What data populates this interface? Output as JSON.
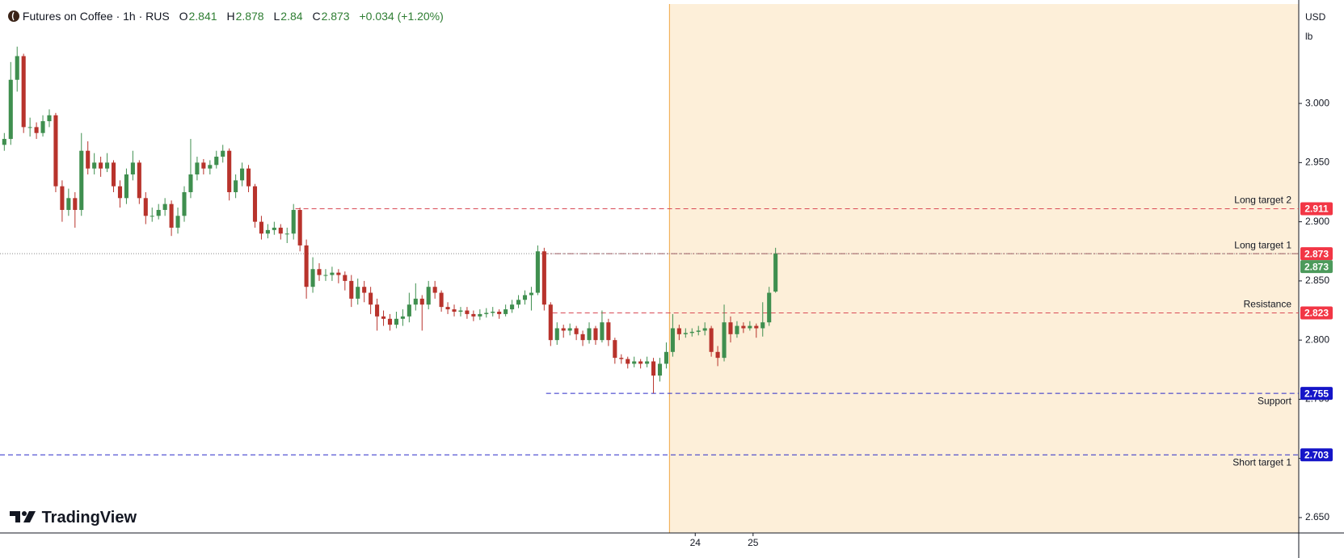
{
  "chart_data": {
    "type": "candlestick",
    "title": "Futures on Coffee · 1h · RUS",
    "ohlc_labels": [
      "O",
      "H",
      "L",
      "C"
    ],
    "change": "+0.034 (+1.20%)",
    "currency": "USD",
    "unit": "lb",
    "brand": "TradingView",
    "up_color": "#3f8f4f",
    "down_color": "#b8332c",
    "ylim": [
      2.637,
      3.084
    ],
    "yticks": [
      {
        "value": 2.65,
        "label": "2.650"
      },
      {
        "value": 2.7,
        "label": "2.700"
      },
      {
        "value": 2.75,
        "label": "2.750"
      },
      {
        "value": 2.8,
        "label": "2.800"
      },
      {
        "value": 2.85,
        "label": "2.850"
      },
      {
        "value": 2.9,
        "label": "2.900"
      },
      {
        "value": 2.95,
        "label": "2.950"
      },
      {
        "value": 3.0,
        "label": "3.000"
      }
    ],
    "xlim": [
      -0.67,
      201.4
    ],
    "xticks": [
      {
        "value": 107.5,
        "label": "24"
      },
      {
        "value": 116.5,
        "label": "25"
      }
    ],
    "session_highlight": {
      "from": 103.5,
      "color": "#fdefd9",
      "border": "#f2b25c"
    },
    "levels": [
      {
        "name": "Long target 2",
        "value": 2.911,
        "from": 45.3,
        "color": "#d94a55",
        "dash": "6 4",
        "label_side": "above"
      },
      {
        "name": "Long target 1",
        "value": 2.873,
        "from": 83.6,
        "color": "#9a5a60",
        "dash": "8 3 2 3",
        "label_side": "above"
      },
      {
        "name": "Resistance",
        "value": 2.823,
        "from": 85.3,
        "color": "#d94a55",
        "dash": "6 4",
        "label_side": "above"
      },
      {
        "name": "Support",
        "value": 2.755,
        "from": 84.3,
        "color": "#2b2bc8",
        "dash": "6 4",
        "label_side": "below"
      },
      {
        "name": "Short target 1",
        "value": 2.703,
        "from": -0.67,
        "color": "#2b2bc8",
        "dash": "6 4",
        "label_side": "below"
      }
    ],
    "tag_colors": {
      "red": "#f23645",
      "blue": "#1515c8",
      "last": "#4c9a5c"
    },
    "ohlc": [
      [
        2.965,
        2.975,
        2.96,
        2.97
      ],
      [
        2.97,
        3.035,
        2.965,
        3.02
      ],
      [
        3.02,
        3.048,
        3.01,
        3.04
      ],
      [
        3.04,
        3.042,
        2.975,
        2.98
      ],
      [
        2.98,
        2.988,
        2.972,
        2.98
      ],
      [
        2.98,
        2.984,
        2.97,
        2.975
      ],
      [
        2.975,
        2.99,
        2.972,
        2.985
      ],
      [
        2.985,
        2.995,
        2.98,
        2.99
      ],
      [
        2.99,
        2.992,
        2.925,
        2.93
      ],
      [
        2.93,
        2.935,
        2.9,
        2.91
      ],
      [
        2.91,
        2.928,
        2.905,
        2.92
      ],
      [
        2.92,
        2.925,
        2.895,
        2.91
      ],
      [
        2.91,
        2.975,
        2.905,
        2.96
      ],
      [
        2.96,
        2.968,
        2.94,
        2.945
      ],
      [
        2.945,
        2.958,
        2.94,
        2.95
      ],
      [
        2.95,
        2.955,
        2.938,
        2.945
      ],
      [
        2.945,
        2.958,
        2.942,
        2.95
      ],
      [
        2.95,
        2.952,
        2.925,
        2.93
      ],
      [
        2.93,
        2.935,
        2.912,
        2.92
      ],
      [
        2.92,
        2.945,
        2.915,
        2.94
      ],
      [
        2.94,
        2.96,
        2.935,
        2.95
      ],
      [
        2.95,
        2.952,
        2.915,
        2.92
      ],
      [
        2.92,
        2.925,
        2.898,
        2.905
      ],
      [
        2.905,
        2.912,
        2.9,
        2.905
      ],
      [
        2.905,
        2.915,
        2.902,
        2.91
      ],
      [
        2.91,
        2.92,
        2.905,
        2.915
      ],
      [
        2.915,
        2.918,
        2.888,
        2.895
      ],
      [
        2.895,
        2.912,
        2.89,
        2.905
      ],
      [
        2.905,
        2.93,
        2.9,
        2.925
      ],
      [
        2.925,
        2.97,
        2.92,
        2.94
      ],
      [
        2.94,
        2.955,
        2.935,
        2.95
      ],
      [
        2.95,
        2.953,
        2.94,
        2.945
      ],
      [
        2.945,
        2.952,
        2.94,
        2.948
      ],
      [
        2.948,
        2.96,
        2.945,
        2.955
      ],
      [
        2.955,
        2.965,
        2.95,
        2.96
      ],
      [
        2.96,
        2.962,
        2.918,
        2.925
      ],
      [
        2.925,
        2.94,
        2.92,
        2.935
      ],
      [
        2.935,
        2.95,
        2.93,
        2.945
      ],
      [
        2.945,
        2.948,
        2.925,
        2.93
      ],
      [
        2.93,
        2.932,
        2.895,
        2.9
      ],
      [
        2.9,
        2.905,
        2.885,
        2.89
      ],
      [
        2.89,
        2.898,
        2.886,
        2.893
      ],
      [
        2.893,
        2.9,
        2.889,
        2.895
      ],
      [
        2.895,
        2.898,
        2.885,
        2.89
      ],
      [
        2.89,
        2.895,
        2.882,
        2.89
      ],
      [
        2.89,
        2.915,
        2.885,
        2.91
      ],
      [
        2.91,
        2.912,
        2.875,
        2.88
      ],
      [
        2.88,
        2.885,
        2.835,
        2.845
      ],
      [
        2.845,
        2.87,
        2.84,
        2.86
      ],
      [
        2.86,
        2.865,
        2.85,
        2.855
      ],
      [
        2.855,
        2.86,
        2.85,
        2.855
      ],
      [
        2.855,
        2.862,
        2.85,
        2.857
      ],
      [
        2.857,
        2.86,
        2.848,
        2.855
      ],
      [
        2.855,
        2.858,
        2.842,
        2.85
      ],
      [
        2.85,
        2.855,
        2.828,
        2.835
      ],
      [
        2.835,
        2.852,
        2.83,
        2.845
      ],
      [
        2.845,
        2.85,
        2.832,
        2.84
      ],
      [
        2.84,
        2.845,
        2.822,
        2.83
      ],
      [
        2.83,
        2.835,
        2.808,
        2.82
      ],
      [
        2.82,
        2.825,
        2.812,
        2.818
      ],
      [
        2.818,
        2.822,
        2.808,
        2.813
      ],
      [
        2.813,
        2.824,
        2.81,
        2.818
      ],
      [
        2.818,
        2.826,
        2.812,
        2.82
      ],
      [
        2.82,
        2.84,
        2.815,
        2.83
      ],
      [
        2.83,
        2.848,
        2.825,
        2.835
      ],
      [
        2.835,
        2.838,
        2.808,
        2.83
      ],
      [
        2.83,
        2.85,
        2.826,
        2.845
      ],
      [
        2.845,
        2.85,
        2.835,
        2.84
      ],
      [
        2.84,
        2.842,
        2.824,
        2.828
      ],
      [
        2.828,
        2.832,
        2.822,
        2.826
      ],
      [
        2.826,
        2.83,
        2.82,
        2.824
      ],
      [
        2.824,
        2.828,
        2.82,
        2.825
      ],
      [
        2.825,
        2.828,
        2.818,
        2.822
      ],
      [
        2.822,
        2.825,
        2.816,
        2.82
      ],
      [
        2.82,
        2.826,
        2.817,
        2.822
      ],
      [
        2.822,
        2.827,
        2.819,
        2.823
      ],
      [
        2.823,
        2.828,
        2.82,
        2.824
      ],
      [
        2.824,
        2.826,
        2.818,
        2.822
      ],
      [
        2.822,
        2.83,
        2.82,
        2.826
      ],
      [
        2.826,
        2.834,
        2.823,
        2.83
      ],
      [
        2.83,
        2.838,
        2.827,
        2.834
      ],
      [
        2.834,
        2.842,
        2.83,
        2.838
      ],
      [
        2.838,
        2.845,
        2.825,
        2.84
      ],
      [
        2.84,
        2.88,
        2.838,
        2.875
      ],
      [
        2.875,
        2.878,
        2.825,
        2.83
      ],
      [
        2.83,
        2.832,
        2.795,
        2.8
      ],
      [
        2.8,
        2.815,
        2.796,
        2.81
      ],
      [
        2.81,
        2.813,
        2.802,
        2.808
      ],
      [
        2.808,
        2.814,
        2.804,
        2.81
      ],
      [
        2.81,
        2.812,
        2.8,
        2.805
      ],
      [
        2.805,
        2.808,
        2.795,
        2.8
      ],
      [
        2.8,
        2.815,
        2.797,
        2.81
      ],
      [
        2.81,
        2.812,
        2.796,
        2.8
      ],
      [
        2.8,
        2.825,
        2.798,
        2.815
      ],
      [
        2.815,
        2.818,
        2.795,
        2.8
      ],
      [
        2.8,
        2.802,
        2.78,
        2.785
      ],
      [
        2.785,
        2.788,
        2.78,
        2.784
      ],
      [
        2.784,
        2.786,
        2.776,
        2.78
      ],
      [
        2.78,
        2.786,
        2.777,
        2.782
      ],
      [
        2.782,
        2.784,
        2.776,
        2.78
      ],
      [
        2.78,
        2.786,
        2.777,
        2.782
      ],
      [
        2.782,
        2.785,
        2.755,
        2.77
      ],
      [
        2.77,
        2.785,
        2.765,
        2.78
      ],
      [
        2.78,
        2.798,
        2.776,
        2.79
      ],
      [
        2.79,
        2.822,
        2.786,
        2.81
      ],
      [
        2.81,
        2.813,
        2.8,
        2.805
      ],
      [
        2.805,
        2.81,
        2.802,
        2.806
      ],
      [
        2.806,
        2.81,
        2.803,
        2.807
      ],
      [
        2.807,
        2.812,
        2.804,
        2.808
      ],
      [
        2.808,
        2.815,
        2.804,
        2.81
      ],
      [
        2.81,
        2.812,
        2.786,
        2.79
      ],
      [
        2.79,
        2.795,
        2.778,
        2.785
      ],
      [
        2.785,
        2.83,
        2.782,
        2.815
      ],
      [
        2.815,
        2.82,
        2.798,
        2.805
      ],
      [
        2.805,
        2.816,
        2.802,
        2.812
      ],
      [
        2.812,
        2.815,
        2.806,
        2.81
      ],
      [
        2.81,
        2.816,
        2.808,
        2.812
      ],
      [
        2.812,
        2.814,
        2.802,
        2.81
      ],
      [
        2.81,
        2.832,
        2.803,
        2.815
      ],
      [
        2.815,
        2.845,
        2.812,
        2.84
      ],
      [
        2.841,
        2.878,
        2.84,
        2.873
      ]
    ]
  }
}
